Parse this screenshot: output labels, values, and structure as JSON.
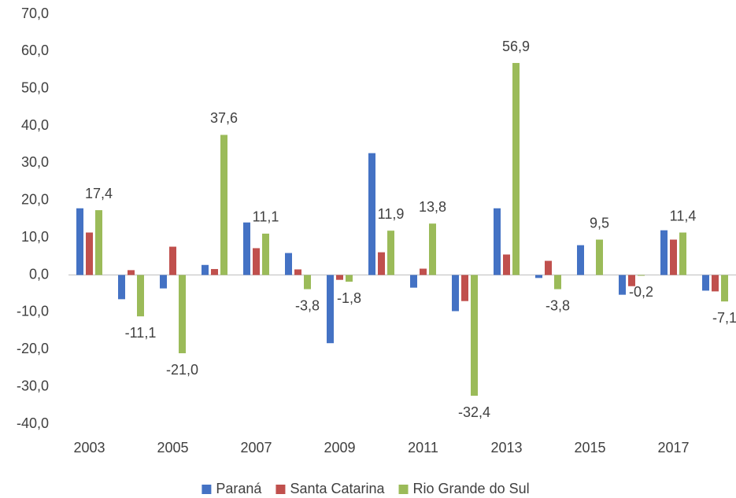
{
  "chart_data": {
    "type": "bar",
    "categories": [
      "2003",
      null,
      "2005",
      null,
      "2007",
      null,
      "2009",
      null,
      "2011",
      null,
      "2013",
      null,
      "2015",
      null,
      "2017",
      null
    ],
    "series": [
      {
        "name": "Paraná",
        "color": "#4472c4",
        "values": [
          17.9,
          -6.5,
          -3.6,
          2.7,
          14.1,
          5.9,
          -18.3,
          32.7,
          -3.4,
          -9.7,
          17.9,
          -0.8,
          8.0,
          -5.3,
          12.0,
          -4.2
        ]
      },
      {
        "name": "Santa Catarina",
        "color": "#c0504d",
        "values": [
          11.4,
          1.3,
          7.6,
          1.6,
          7.2,
          1.5,
          -1.3,
          6.1,
          1.7,
          -7.0,
          5.5,
          3.8,
          0,
          -3.0,
          9.5,
          -4.4
        ]
      },
      {
        "name": "Rio Grande do Sul",
        "color": "#9bbb59",
        "values": [
          17.4,
          -11.1,
          -21.0,
          37.6,
          11.1,
          -3.8,
          -1.8,
          11.9,
          13.8,
          -32.4,
          56.9,
          -3.8,
          9.5,
          -0.2,
          11.4,
          -7.1
        ],
        "value_labels": [
          "17,4",
          "-11,1",
          "-21,0",
          "37,6",
          "11,1",
          "-3,8",
          "-1,8",
          "11,9",
          "13,8",
          "-32,4",
          "56,9",
          "-3,8",
          "9,5",
          "-0,2",
          "11,4",
          "-7,1"
        ]
      }
    ],
    "ylim": [
      -40,
      70
    ],
    "yticks": [
      {
        "value": -40,
        "label": "-40,0"
      },
      {
        "value": -30,
        "label": "-30,0"
      },
      {
        "value": -20,
        "label": "-20,0"
      },
      {
        "value": -10,
        "label": "-10,0"
      },
      {
        "value": 0,
        "label": "0,0"
      },
      {
        "value": 10,
        "label": "10,0"
      },
      {
        "value": 20,
        "label": "20,0"
      },
      {
        "value": 30,
        "label": "30,0"
      },
      {
        "value": 40,
        "label": "40,0"
      },
      {
        "value": 50,
        "label": "50,0"
      },
      {
        "value": 60,
        "label": "60,0"
      },
      {
        "value": 70,
        "label": "70,0"
      }
    ],
    "grid": false,
    "legend": "bottom"
  }
}
